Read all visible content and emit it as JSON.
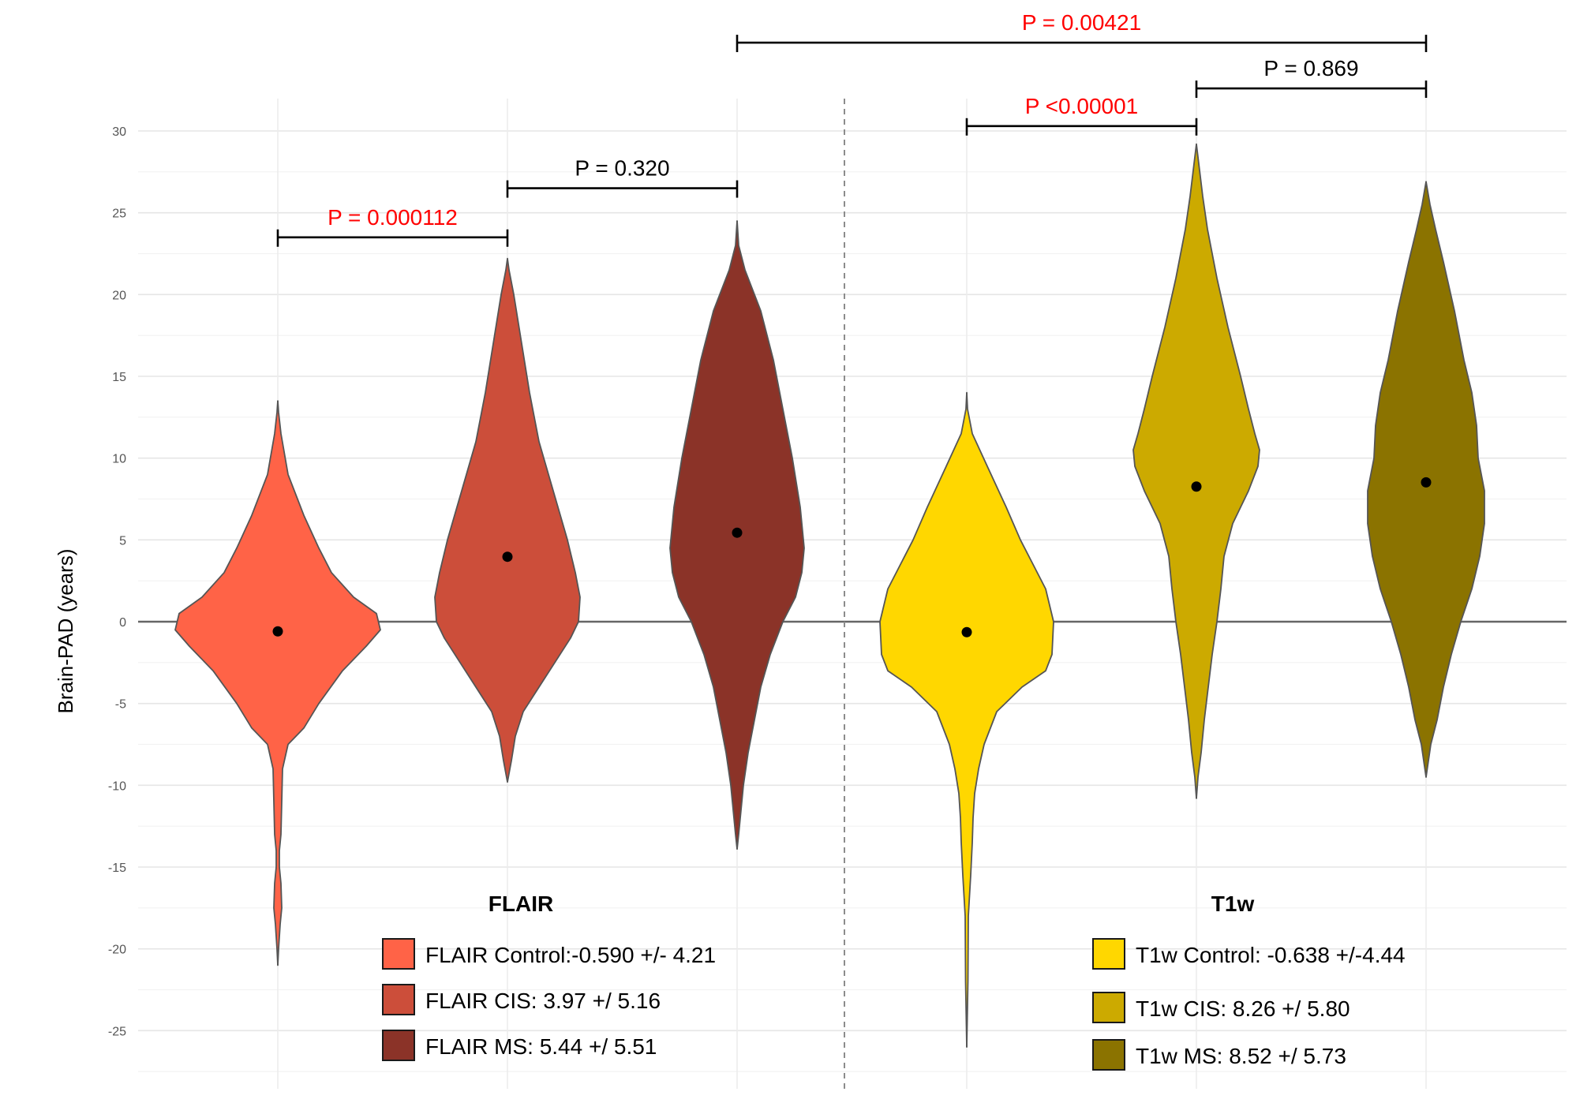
{
  "chart_data": {
    "type": "violin",
    "ylabel": "Brain-PAD (years)",
    "xlabel": "",
    "ylim": [
      -28,
      30.5
    ],
    "yticks": [
      30,
      25,
      20,
      15,
      10,
      5,
      0,
      -5,
      -10,
      -15,
      -20,
      -25
    ],
    "grid": true,
    "reference_line": 0,
    "groups": [
      {
        "title": "FLAIR",
        "legend": [
          {
            "label": "FLAIR Control:-0.590 +/- 4.21",
            "color": "#FF6347"
          },
          {
            "label": "FLAIR CIS: 3.97 +/ 5.16",
            "color": "#CC4E3A"
          },
          {
            "label": "FLAIR MS: 5.44 +/ 5.51",
            "color": "#8B3328"
          }
        ]
      },
      {
        "title": "T1w",
        "legend": [
          {
            "label": "T1w Control: -0.638 +/-4.44",
            "color": "#FFD700"
          },
          {
            "label": "T1w CIS: 8.26 +/ 5.80",
            "color": "#CCAA00"
          },
          {
            "label": "T1w MS: 8.52 +/ 5.73",
            "color": "#8B7300"
          }
        ]
      }
    ],
    "series": [
      {
        "name": "FLAIR Control",
        "color": "#FF6347",
        "mean": -0.59,
        "sd": 4.21,
        "min": -21,
        "max": 13.5
      },
      {
        "name": "FLAIR CIS",
        "color": "#CC4E3A",
        "mean": 3.97,
        "sd": 5.16,
        "min": -9.8,
        "max": 22.2
      },
      {
        "name": "FLAIR MS",
        "color": "#8B3328",
        "mean": 5.44,
        "sd": 5.51,
        "min": -13.9,
        "max": 24.5
      },
      {
        "name": "T1w Control",
        "color": "#FFD700",
        "mean": -0.638,
        "sd": 4.44,
        "min": -26,
        "max": 14
      },
      {
        "name": "T1w CIS",
        "color": "#CCAA00",
        "mean": 8.26,
        "sd": 5.8,
        "min": -10.8,
        "max": 29.2
      },
      {
        "name": "T1w MS",
        "color": "#8B7300",
        "mean": 8.52,
        "sd": 5.73,
        "min": -9.5,
        "max": 26.9
      }
    ],
    "comparisons": [
      {
        "from": 0,
        "to": 1,
        "label": "P = 0.000112",
        "color": "#FF0000",
        "y": 23.5
      },
      {
        "from": 1,
        "to": 2,
        "label": "P = 0.320",
        "color": "#000000",
        "y": 26.5
      },
      {
        "from": 3,
        "to": 4,
        "label": "P <0.00001",
        "color": "#FF0000",
        "y": 30.3
      },
      {
        "from": 4,
        "to": 5,
        "label": "P = 0.869",
        "color": "#000000",
        "y": 32.6
      },
      {
        "from": 2,
        "to": 5,
        "label": "P = 0.00421",
        "color": "#FF0000",
        "y": 35.4
      }
    ]
  }
}
